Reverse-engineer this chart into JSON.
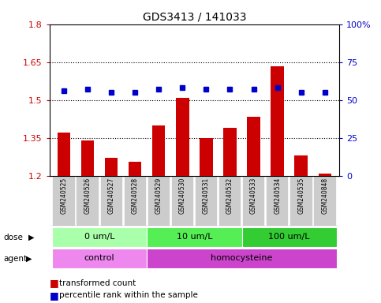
{
  "title": "GDS3413 / 141033",
  "samples": [
    "GSM240525",
    "GSM240526",
    "GSM240527",
    "GSM240528",
    "GSM240529",
    "GSM240530",
    "GSM240531",
    "GSM240532",
    "GSM240533",
    "GSM240534",
    "GSM240535",
    "GSM240848"
  ],
  "red_values": [
    1.37,
    1.34,
    1.27,
    1.255,
    1.4,
    1.51,
    1.35,
    1.39,
    1.435,
    1.635,
    1.28,
    1.21
  ],
  "blue_values": [
    56,
    57,
    55,
    55,
    57,
    58,
    57,
    57,
    57,
    58,
    55,
    55
  ],
  "ylim_left": [
    1.2,
    1.8
  ],
  "ylim_right": [
    0,
    100
  ],
  "yticks_left": [
    1.2,
    1.35,
    1.5,
    1.65,
    1.8
  ],
  "yticks_right": [
    0,
    25,
    50,
    75,
    100
  ],
  "ytick_labels_left": [
    "1.2",
    "1.35",
    "1.5",
    "1.65",
    "1.8"
  ],
  "ytick_labels_right": [
    "0",
    "25",
    "50",
    "75",
    "100%"
  ],
  "hlines": [
    1.35,
    1.5,
    1.65
  ],
  "red_color": "#cc0000",
  "blue_color": "#0000cc",
  "bar_width": 0.55,
  "dose_groups": [
    {
      "label": "0 um/L",
      "start": 0,
      "end": 4,
      "color": "#aaffaa"
    },
    {
      "label": "10 um/L",
      "start": 4,
      "end": 8,
      "color": "#55ee55"
    },
    {
      "label": "100 um/L",
      "start": 8,
      "end": 12,
      "color": "#33cc33"
    }
  ],
  "agent_groups": [
    {
      "label": "control",
      "start": 0,
      "end": 4,
      "color": "#ee88ee"
    },
    {
      "label": "homocysteine",
      "start": 4,
      "end": 12,
      "color": "#cc44cc"
    }
  ],
  "dose_label": "dose",
  "agent_label": "agent",
  "grid_color": "black",
  "grid_linewidth": 0.8,
  "sample_box_color": "#cccccc"
}
